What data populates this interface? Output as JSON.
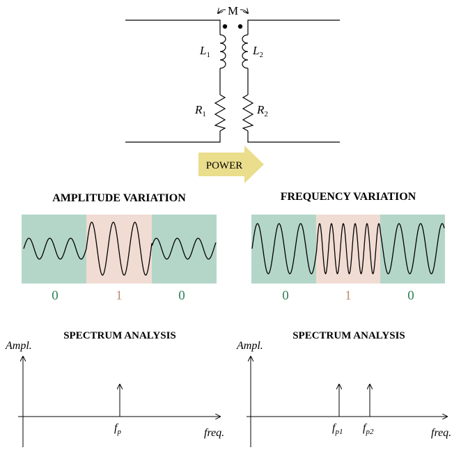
{
  "circuit": {
    "mutual_label": "M",
    "l1": "L",
    "l1_sub": "1",
    "l2": "L",
    "l2_sub": "2",
    "r1": "R",
    "r1_sub": "1",
    "r2": "R",
    "r2_sub": "2",
    "power_label": "POWER"
  },
  "colors": {
    "zero_bg": "#b4d6c9",
    "one_bg": "#f1dcd3",
    "zero_text": "#2e7d55",
    "one_text": "#c08a6a",
    "arrow": "#eadd8c",
    "line": "#000000"
  },
  "amplitude": {
    "title": "AMPLITUDE VARIATION",
    "bits": [
      "0",
      "1",
      "0"
    ]
  },
  "frequency": {
    "title": "FREQUENCY VARIATION",
    "bits": [
      "0",
      "1",
      "0"
    ]
  },
  "spectrum_left": {
    "title": "SPECTRUM ANALYSIS",
    "ylabel": "Ampl.",
    "xlabel": "freq.",
    "peaks": [
      {
        "label": "f",
        "sub": "p"
      }
    ]
  },
  "spectrum_right": {
    "title": "SPECTRUM ANALYSIS",
    "ylabel": "Ampl.",
    "xlabel": "freq.",
    "peaks": [
      {
        "label": "f",
        "sub": "p1"
      },
      {
        "label": "f",
        "sub": "p2"
      }
    ]
  }
}
